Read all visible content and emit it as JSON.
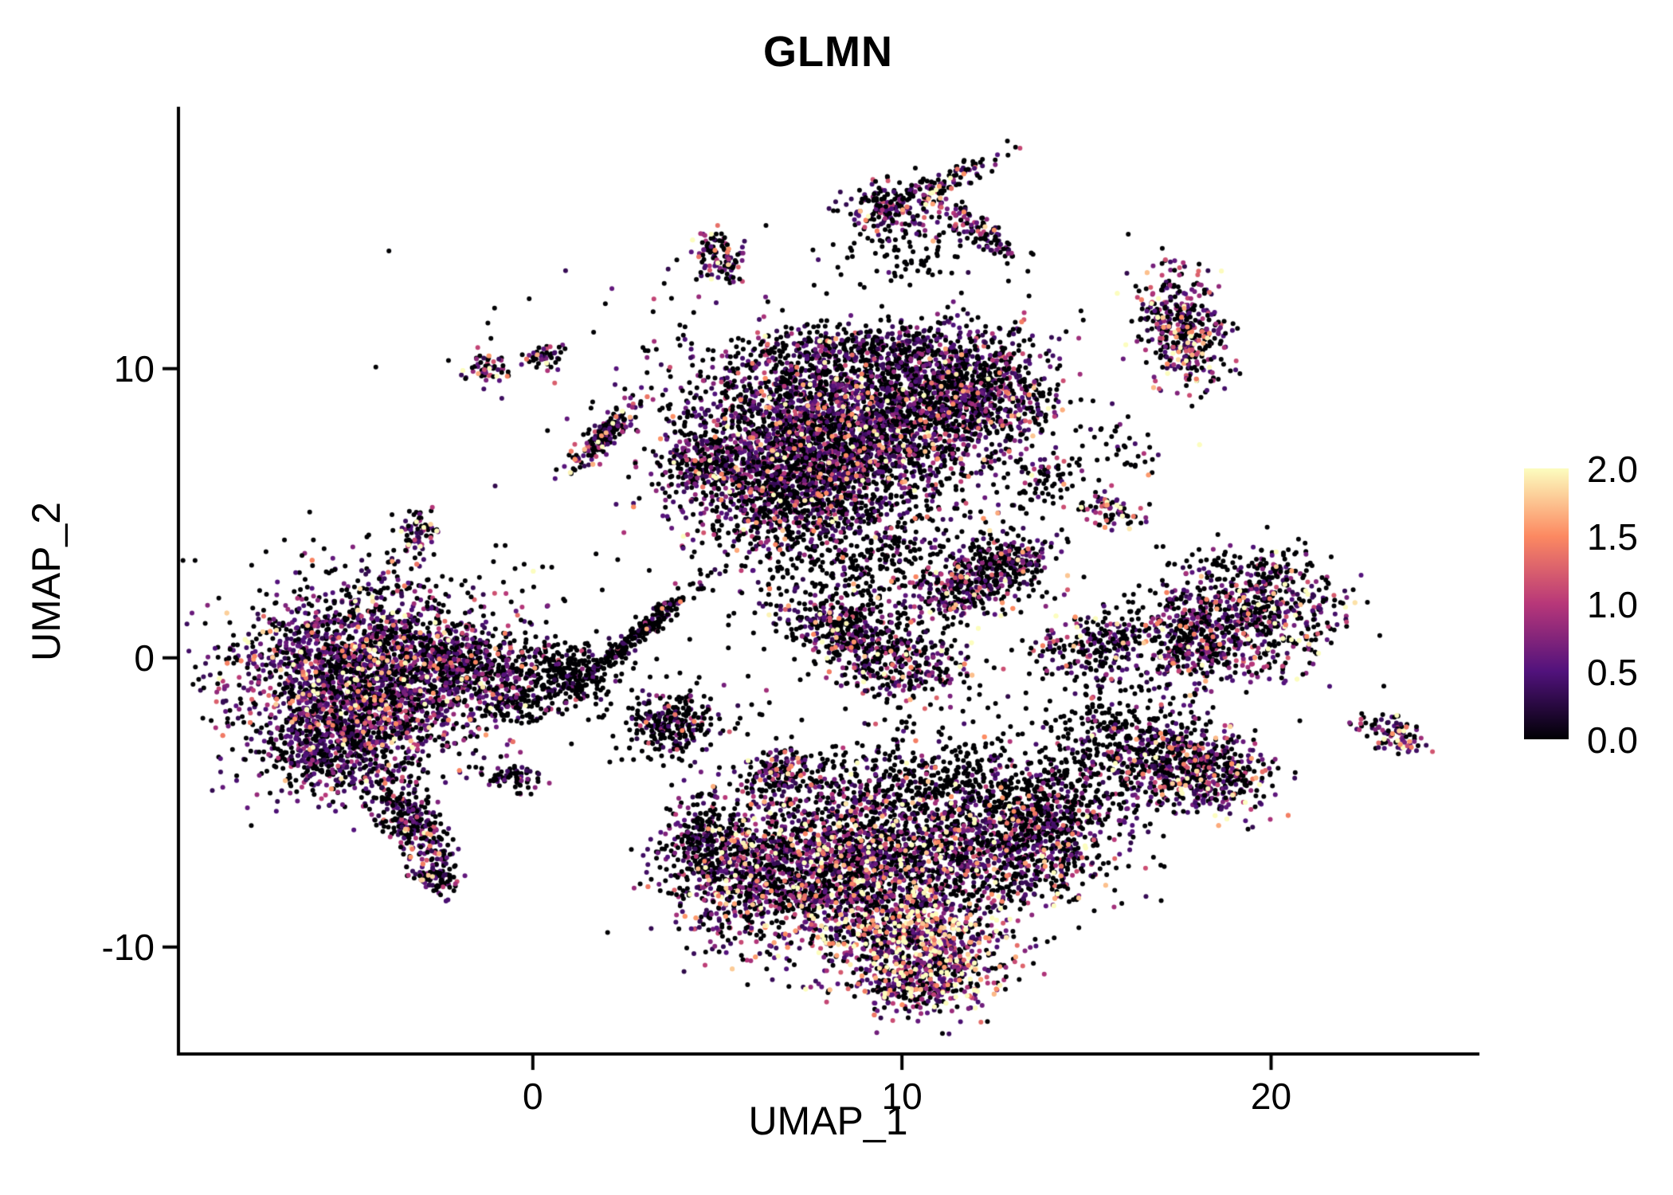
{
  "colors": {
    "background": "#ffffff",
    "text": "#000000",
    "axis": "#000000"
  },
  "chart_data": {
    "type": "scatter",
    "title": "GLMN",
    "xlabel": "UMAP_1",
    "ylabel": "UMAP_2",
    "xlim": [
      -9.6,
      25.6
    ],
    "ylim": [
      -13.7,
      19.0
    ],
    "x_ticks": [
      0,
      10,
      20
    ],
    "x_tick_labels": [
      "0",
      "10",
      "20"
    ],
    "y_ticks": [
      -10,
      0,
      10
    ],
    "y_tick_labels": [
      "-10",
      "0",
      "10"
    ],
    "grid": false,
    "point_radius_px": 3,
    "seed": 42,
    "colormap": {
      "name": "magma",
      "anchors": [
        "#000004",
        "#51127c",
        "#b73779",
        "#fc8961",
        "#fcfdbf"
      ],
      "positions": [
        0,
        0.25,
        0.5,
        0.75,
        1
      ]
    },
    "legend": {
      "position": "right",
      "range": [
        0,
        2
      ],
      "tick_values": [
        2.0,
        1.5,
        1.0,
        0.5,
        0.0
      ],
      "tick_labels": [
        "2.0",
        "1.5",
        "1.0",
        "0.5",
        "0.0"
      ]
    },
    "cluster_fields": [
      "name",
      "cx",
      "cy",
      "sx",
      "sy",
      "angle_deg",
      "n",
      "p0_zero_fraction",
      "mean_expression"
    ],
    "clusters": [
      [
        "left-main",
        -4.4,
        -0.7,
        1.85,
        1.55,
        0,
        2600,
        0.42,
        0.75
      ],
      [
        "left-lower-lobe",
        -5.3,
        -3.1,
        1.0,
        0.8,
        20,
        450,
        0.5,
        0.7
      ],
      [
        "left-tail",
        -3.3,
        -5.7,
        1.15,
        0.38,
        -64,
        330,
        0.55,
        0.7
      ],
      [
        "left-tail-tip",
        -2.75,
        -7.5,
        0.35,
        0.35,
        0,
        80,
        0.5,
        0.8
      ],
      [
        "left-right-arm",
        -1.8,
        -0.3,
        0.9,
        0.55,
        -20,
        300,
        0.62,
        0.7
      ],
      [
        "bridge-hook",
        0.8,
        -0.5,
        0.75,
        0.55,
        -30,
        300,
        0.85,
        0.6
      ],
      [
        "bridge-dots",
        -0.3,
        -1.6,
        0.5,
        0.35,
        0,
        90,
        0.85,
        0.6
      ],
      [
        "streak-diagonal",
        2.95,
        0.9,
        1.15,
        0.14,
        47,
        230,
        0.8,
        0.6
      ],
      [
        "small-cluster-a",
        3.7,
        -2.3,
        0.6,
        0.5,
        0,
        260,
        0.72,
        0.7
      ],
      [
        "small-cluster-b",
        6.6,
        -4.0,
        0.48,
        0.42,
        0,
        140,
        0.55,
        0.85
      ],
      [
        "tiny-cluster-c",
        -0.6,
        -4.15,
        0.42,
        0.25,
        -15,
        65,
        0.65,
        0.7
      ],
      [
        "small-blob-d",
        -3.1,
        4.4,
        0.28,
        0.38,
        0,
        70,
        0.45,
        0.85
      ],
      [
        "tiny-blob-e",
        -1.2,
        10.0,
        0.3,
        0.26,
        0,
        55,
        0.45,
        0.85
      ],
      [
        "tiny-blob-f",
        0.35,
        10.4,
        0.3,
        0.2,
        20,
        48,
        0.5,
        0.8
      ],
      [
        "streak-upper-left",
        1.85,
        7.6,
        0.85,
        0.18,
        53,
        180,
        0.5,
        0.85
      ],
      [
        "small-top-g",
        5.0,
        13.9,
        0.34,
        0.5,
        10,
        110,
        0.45,
        0.9
      ],
      [
        "top-blob",
        9.6,
        15.5,
        0.55,
        0.5,
        0,
        170,
        0.5,
        0.8
      ],
      [
        "top-streak-right",
        11.0,
        16.35,
        0.85,
        0.2,
        30,
        110,
        0.55,
        0.75
      ],
      [
        "top-streak-down",
        11.9,
        14.85,
        0.85,
        0.24,
        -38,
        130,
        0.55,
        0.75
      ],
      [
        "top-sparse",
        10.1,
        14.1,
        0.9,
        0.5,
        0,
        70,
        0.92,
        0.6
      ],
      [
        "upper-main",
        8.2,
        7.9,
        2.1,
        1.55,
        5,
        3000,
        0.5,
        0.72
      ],
      [
        "upper-right-lobe",
        11.7,
        9.2,
        1.25,
        1.15,
        0,
        950,
        0.5,
        0.72
      ],
      [
        "upper-lower-left",
        6.8,
        5.7,
        1.3,
        0.95,
        15,
        650,
        0.52,
        0.72
      ],
      [
        "upper-top-rim",
        9.0,
        10.6,
        1.8,
        0.5,
        0,
        350,
        0.6,
        0.6
      ],
      [
        "upper-below-scatter",
        8.7,
        3.8,
        1.7,
        1.0,
        0,
        420,
        0.8,
        0.7
      ],
      [
        "upper-left-tip",
        4.6,
        6.8,
        0.6,
        0.5,
        0,
        200,
        0.5,
        0.75
      ],
      [
        "wing-a1",
        8.4,
        1.0,
        0.85,
        0.5,
        -15,
        300,
        0.55,
        0.78
      ],
      [
        "wing-a2",
        9.9,
        -0.2,
        0.95,
        0.6,
        -10,
        330,
        0.55,
        0.78
      ],
      [
        "wing-b1",
        11.6,
        2.4,
        0.8,
        0.55,
        20,
        300,
        0.55,
        0.78
      ],
      [
        "wing-b2",
        12.9,
        3.3,
        0.7,
        0.5,
        20,
        230,
        0.55,
        0.78
      ],
      [
        "wing-c",
        15.3,
        0.4,
        0.8,
        0.55,
        10,
        240,
        0.55,
        0.8
      ],
      [
        "tiny-mid-right",
        15.6,
        5.1,
        0.42,
        0.3,
        0,
        80,
        0.45,
        0.95
      ],
      [
        "sparse-right-of-upper",
        13.9,
        6.0,
        0.7,
        0.6,
        0,
        70,
        0.8,
        0.7
      ],
      [
        "sparse-ne",
        16.0,
        7.3,
        0.6,
        0.5,
        0,
        35,
        0.85,
        0.7
      ],
      [
        "right-main-a",
        17.9,
        0.7,
        0.85,
        0.9,
        0,
        430,
        0.5,
        0.8
      ],
      [
        "right-main-b",
        19.8,
        1.6,
        1.05,
        0.95,
        0,
        500,
        0.48,
        0.85
      ],
      [
        "right-main-top-rim",
        19.2,
        3.2,
        1.1,
        0.3,
        0,
        80,
        0.88,
        0.6
      ],
      [
        "top-right-cluster",
        17.6,
        11.4,
        0.6,
        1.15,
        8,
        430,
        0.45,
        0.9
      ],
      [
        "bottom-left",
        6.2,
        -7.5,
        1.2,
        1.3,
        0,
        950,
        0.45,
        0.85
      ],
      [
        "bottom-mid",
        9.2,
        -6.9,
        1.6,
        1.35,
        0,
        1450,
        0.45,
        0.9
      ],
      [
        "bottom-hot",
        10.3,
        -9.8,
        1.3,
        1.0,
        -10,
        950,
        0.3,
        1.2
      ],
      [
        "bottom-right",
        13.1,
        -6.3,
        1.4,
        1.15,
        10,
        1050,
        0.55,
        0.72
      ],
      [
        "bottom-top-scatter",
        11.0,
        -4.2,
        2.2,
        0.85,
        0,
        480,
        0.82,
        0.65
      ],
      [
        "bottom-tip",
        10.6,
        -11.3,
        0.85,
        0.5,
        0,
        220,
        0.45,
        1.0
      ],
      [
        "bottom-left-edge",
        4.6,
        -6.3,
        0.55,
        0.8,
        0,
        260,
        0.65,
        0.7
      ],
      [
        "bottom-bridge",
        14.8,
        -4.7,
        0.9,
        0.9,
        0,
        130,
        0.85,
        0.6
      ],
      [
        "lower-right-a",
        16.9,
        -3.3,
        0.85,
        0.8,
        0,
        400,
        0.5,
        0.8
      ],
      [
        "lower-right-b",
        18.4,
        -4.2,
        0.85,
        0.7,
        -10,
        360,
        0.48,
        0.85
      ],
      [
        "lower-right-sparse",
        15.4,
        -2.6,
        0.7,
        0.7,
        0,
        110,
        0.85,
        0.6
      ],
      [
        "far-right-streak",
        23.2,
        -2.6,
        0.5,
        0.28,
        -25,
        95,
        0.45,
        0.9
      ],
      [
        "noise-mid",
        8.0,
        1.5,
        4.0,
        1.8,
        0,
        130,
        0.9,
        0.5
      ],
      [
        "noise-right",
        14.5,
        -1.5,
        2.8,
        1.4,
        0,
        90,
        0.9,
        0.5
      ],
      [
        "noise-top",
        4.0,
        11.5,
        2.8,
        1.6,
        0,
        45,
        0.9,
        0.5
      ],
      [
        "noise-left",
        -4.0,
        2.8,
        2.2,
        1.0,
        0,
        50,
        0.92,
        0.5
      ]
    ]
  }
}
